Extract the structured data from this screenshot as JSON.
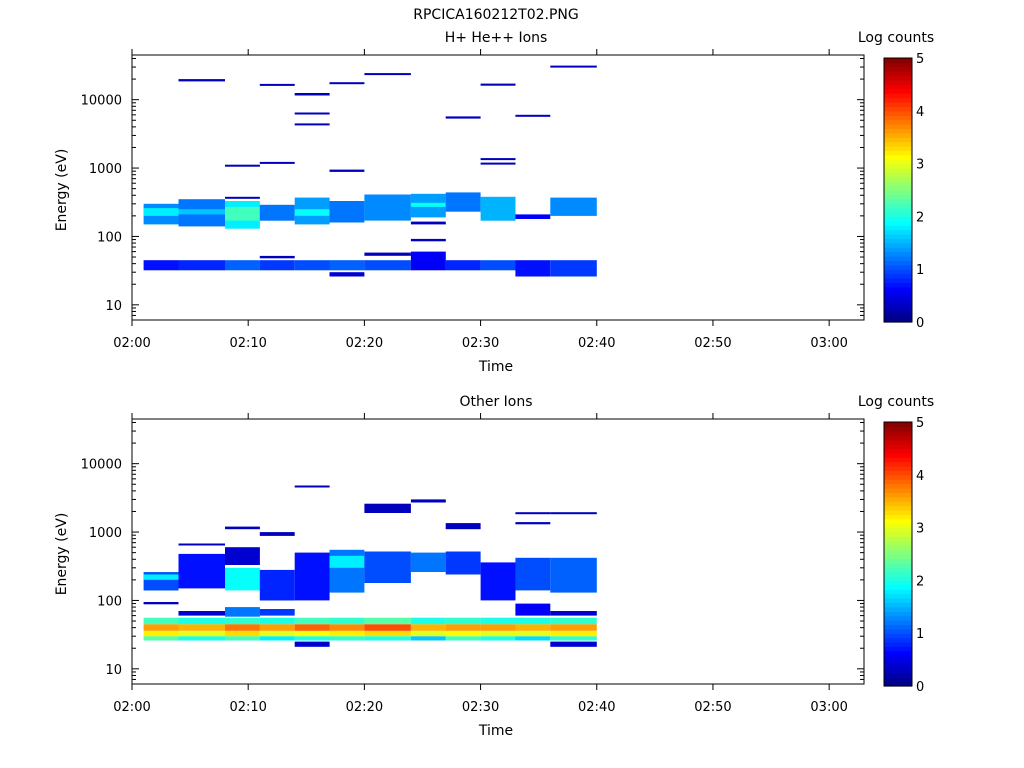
{
  "figure_title": "RPCICA160212T02.PNG",
  "chart_data": [
    {
      "type": "heatmap",
      "title": "H+ He++ Ions",
      "xlabel": "Time",
      "ylabel": "Energy (eV)",
      "y_scale": "log",
      "ylim": [
        6,
        45000
      ],
      "xlim": [
        "02:00",
        "03:03"
      ],
      "x_ticks": [
        "02:00",
        "02:10",
        "02:20",
        "02:30",
        "02:40",
        "02:50",
        "03:00"
      ],
      "y_ticks": [
        "10",
        "100",
        "1000",
        "10000"
      ],
      "colorbar": {
        "label": "Log counts",
        "min": 0,
        "max": 5,
        "ticks": [
          "0",
          "1",
          "2",
          "3",
          "4",
          "5"
        ]
      },
      "time_bins": [
        "02:01",
        "02:04",
        "02:08",
        "02:11",
        "02:14",
        "02:17",
        "02:20",
        "02:24",
        "02:27",
        "02:30",
        "02:33",
        "02:36",
        "02:40"
      ],
      "cells": [
        [
          0,
          1,
          32,
          45,
          0.7
        ],
        [
          0,
          1,
          150,
          300,
          1.3
        ],
        [
          0,
          1,
          200,
          260,
          1.8
        ],
        [
          1,
          2,
          32,
          45,
          0.8
        ],
        [
          1,
          2,
          140,
          350,
          1.2
        ],
        [
          1,
          2,
          210,
          250,
          1.6
        ],
        [
          1,
          2,
          18500,
          20000,
          0.3
        ],
        [
          2,
          3,
          32,
          45,
          1.1
        ],
        [
          2,
          3,
          130,
          330,
          1.8
        ],
        [
          2,
          3,
          170,
          270,
          2.2
        ],
        [
          2,
          3,
          360,
          380,
          0.3
        ],
        [
          2,
          3,
          1050,
          1120,
          0.3
        ],
        [
          3,
          4,
          32,
          45,
          0.9
        ],
        [
          3,
          4,
          48,
          52,
          0.3
        ],
        [
          3,
          4,
          170,
          290,
          1.2
        ],
        [
          3,
          4,
          1150,
          1230,
          0.3
        ],
        [
          3,
          4,
          16000,
          17000,
          0.3
        ],
        [
          4,
          5,
          32,
          45,
          1.0
        ],
        [
          4,
          5,
          150,
          370,
          1.4
        ],
        [
          4,
          5,
          200,
          250,
          1.9
        ],
        [
          4,
          5,
          4200,
          4500,
          0.3
        ],
        [
          4,
          5,
          6100,
          6500,
          0.3
        ],
        [
          4,
          5,
          11500,
          12500,
          0.3
        ],
        [
          5,
          6,
          26,
          30,
          0.4
        ],
        [
          5,
          6,
          32,
          45,
          1.1
        ],
        [
          5,
          6,
          160,
          330,
          1.2
        ],
        [
          5,
          6,
          880,
          950,
          0.3
        ],
        [
          5,
          6,
          17000,
          18000,
          0.3
        ],
        [
          6,
          7,
          32,
          45,
          1.0
        ],
        [
          6,
          7,
          52,
          58,
          0.3
        ],
        [
          6,
          7,
          170,
          410,
          1.3
        ],
        [
          6,
          7,
          23000,
          24500,
          0.3
        ],
        [
          7,
          8,
          32,
          60,
          0.6
        ],
        [
          7,
          8,
          85,
          92,
          0.3
        ],
        [
          7,
          8,
          150,
          165,
          0.3
        ],
        [
          7,
          8,
          190,
          420,
          1.4
        ],
        [
          7,
          8,
          270,
          310,
          1.9
        ],
        [
          8,
          9,
          32,
          45,
          0.8
        ],
        [
          8,
          9,
          230,
          440,
          1.2
        ],
        [
          8,
          9,
          5300,
          5700,
          0.3
        ],
        [
          9,
          10,
          32,
          45,
          1.0
        ],
        [
          9,
          10,
          170,
          380,
          1.5
        ],
        [
          9,
          10,
          1130,
          1200,
          0.3
        ],
        [
          9,
          10,
          1330,
          1400,
          0.3
        ],
        [
          9,
          10,
          16000,
          17200,
          0.3
        ],
        [
          10,
          11,
          26,
          45,
          0.7
        ],
        [
          10,
          11,
          180,
          210,
          0.6
        ],
        [
          10,
          11,
          5700,
          6000,
          0.3
        ],
        [
          11,
          12,
          26,
          45,
          0.9
        ],
        [
          11,
          12,
          200,
          370,
          1.3
        ],
        [
          11,
          12,
          29500,
          31500,
          0.3
        ]
      ]
    },
    {
      "type": "heatmap",
      "title": "Other Ions",
      "xlabel": "Time",
      "ylabel": "Energy (eV)",
      "y_scale": "log",
      "ylim": [
        6,
        45000
      ],
      "xlim": [
        "02:00",
        "03:03"
      ],
      "x_ticks": [
        "02:00",
        "02:10",
        "02:20",
        "02:30",
        "02:40",
        "02:50",
        "03:00"
      ],
      "y_ticks": [
        "10",
        "100",
        "1000",
        "10000"
      ],
      "colorbar": {
        "label": "Log counts",
        "min": 0,
        "max": 5,
        "ticks": [
          "0",
          "1",
          "2",
          "3",
          "4",
          "5"
        ]
      },
      "time_bins": [
        "02:01",
        "02:04",
        "02:08",
        "02:11",
        "02:14",
        "02:17",
        "02:20",
        "02:24",
        "02:27",
        "02:30",
        "02:33",
        "02:36",
        "02:40"
      ],
      "cells": [
        [
          0,
          1,
          26,
          30,
          2.3
        ],
        [
          0,
          1,
          30,
          36,
          3.2
        ],
        [
          0,
          1,
          36,
          45,
          3.6
        ],
        [
          0,
          1,
          45,
          56,
          2.2
        ],
        [
          0,
          1,
          88,
          95,
          0.3
        ],
        [
          0,
          1,
          140,
          260,
          1.0
        ],
        [
          0,
          1,
          200,
          240,
          1.8
        ],
        [
          1,
          2,
          26,
          30,
          2.0
        ],
        [
          1,
          2,
          30,
          36,
          3.0
        ],
        [
          1,
          2,
          36,
          45,
          3.5
        ],
        [
          1,
          2,
          45,
          56,
          2.0
        ],
        [
          1,
          2,
          60,
          70,
          0.4
        ],
        [
          1,
          2,
          150,
          480,
          0.7
        ],
        [
          1,
          2,
          640,
          680,
          0.3
        ],
        [
          2,
          3,
          26,
          30,
          2.2
        ],
        [
          2,
          3,
          30,
          36,
          3.3
        ],
        [
          2,
          3,
          36,
          45,
          3.8
        ],
        [
          2,
          3,
          45,
          56,
          2.1
        ],
        [
          2,
          3,
          58,
          80,
          1.2
        ],
        [
          2,
          3,
          140,
          300,
          1.9
        ],
        [
          2,
          3,
          330,
          600,
          0.4
        ],
        [
          2,
          3,
          1100,
          1200,
          0.3
        ],
        [
          3,
          4,
          26,
          30,
          1.8
        ],
        [
          3,
          4,
          30,
          36,
          3.0
        ],
        [
          3,
          4,
          36,
          45,
          3.6
        ],
        [
          3,
          4,
          45,
          56,
          2.0
        ],
        [
          3,
          4,
          60,
          75,
          0.9
        ],
        [
          3,
          4,
          100,
          280,
          0.8
        ],
        [
          3,
          4,
          880,
          1000,
          0.3
        ],
        [
          4,
          5,
          21,
          25,
          0.4
        ],
        [
          4,
          5,
          26,
          30,
          2.0
        ],
        [
          4,
          5,
          30,
          36,
          3.1
        ],
        [
          4,
          5,
          36,
          45,
          3.9
        ],
        [
          4,
          5,
          45,
          56,
          2.2
        ],
        [
          4,
          5,
          100,
          500,
          0.7
        ],
        [
          4,
          5,
          4500,
          4800,
          0.3
        ],
        [
          5,
          6,
          26,
          30,
          2.1
        ],
        [
          5,
          6,
          30,
          36,
          3.2
        ],
        [
          5,
          6,
          36,
          45,
          3.7
        ],
        [
          5,
          6,
          45,
          56,
          2.1
        ],
        [
          5,
          6,
          130,
          550,
          1.2
        ],
        [
          5,
          6,
          300,
          450,
          1.8
        ],
        [
          6,
          7,
          26,
          30,
          2.0
        ],
        [
          6,
          7,
          30,
          36,
          3.3
        ],
        [
          6,
          7,
          36,
          45,
          4.0
        ],
        [
          6,
          7,
          45,
          56,
          2.3
        ],
        [
          6,
          7,
          180,
          520,
          1.0
        ],
        [
          6,
          7,
          1900,
          2600,
          0.3
        ],
        [
          7,
          8,
          26,
          30,
          1.6
        ],
        [
          7,
          8,
          30,
          36,
          3.0
        ],
        [
          7,
          8,
          36,
          45,
          3.5
        ],
        [
          7,
          8,
          45,
          56,
          2.0
        ],
        [
          7,
          8,
          260,
          500,
          1.2
        ],
        [
          7,
          8,
          2700,
          3000,
          0.3
        ],
        [
          8,
          9,
          26,
          30,
          2.2
        ],
        [
          8,
          9,
          30,
          36,
          3.1
        ],
        [
          8,
          9,
          36,
          45,
          3.6
        ],
        [
          8,
          9,
          45,
          56,
          2.1
        ],
        [
          8,
          9,
          240,
          520,
          0.9
        ],
        [
          8,
          9,
          1100,
          1350,
          0.3
        ],
        [
          9,
          10,
          26,
          30,
          2.0
        ],
        [
          9,
          10,
          30,
          36,
          3.0
        ],
        [
          9,
          10,
          36,
          45,
          3.6
        ],
        [
          9,
          10,
          45,
          56,
          2.0
        ],
        [
          9,
          10,
          100,
          360,
          0.7
        ],
        [
          10,
          11,
          26,
          30,
          1.7
        ],
        [
          10,
          11,
          30,
          36,
          3.0
        ],
        [
          10,
          11,
          36,
          45,
          3.5
        ],
        [
          10,
          11,
          45,
          56,
          2.0
        ],
        [
          10,
          11,
          60,
          90,
          0.6
        ],
        [
          10,
          11,
          140,
          420,
          1.0
        ],
        [
          10,
          11,
          1300,
          1400,
          0.3
        ],
        [
          10,
          11,
          1850,
          1950,
          0.3
        ],
        [
          11,
          12,
          21,
          25,
          0.4
        ],
        [
          11,
          12,
          26,
          30,
          2.1
        ],
        [
          11,
          12,
          30,
          36,
          3.2
        ],
        [
          11,
          12,
          36,
          45,
          3.6
        ],
        [
          11,
          12,
          45,
          56,
          2.1
        ],
        [
          11,
          12,
          60,
          70,
          0.4
        ],
        [
          11,
          12,
          130,
          420,
          1.1
        ],
        [
          11,
          12,
          1850,
          1950,
          0.3
        ]
      ]
    }
  ]
}
